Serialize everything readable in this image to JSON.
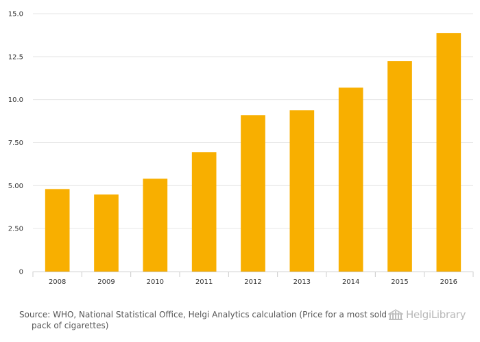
{
  "chart_data": {
    "type": "bar",
    "categories": [
      "2008",
      "2009",
      "2010",
      "2011",
      "2012",
      "2013",
      "2014",
      "2015",
      "2016"
    ],
    "values": [
      4.8,
      4.48,
      5.4,
      6.95,
      9.1,
      9.38,
      10.7,
      12.25,
      13.88
    ],
    "yticks": [
      "0",
      "2.50",
      "5.00",
      "7.50",
      "10.0",
      "12.5",
      "15.0"
    ],
    "ylim": [
      0,
      15
    ],
    "grid": true,
    "bar_color": "#F8AF00"
  },
  "footer": {
    "source_text": "Source: WHO, National Statistical Office, Helgi Analytics calculation (Price for a most sold pack of cigarettes)",
    "logo_text": "HelgiLibrary"
  }
}
